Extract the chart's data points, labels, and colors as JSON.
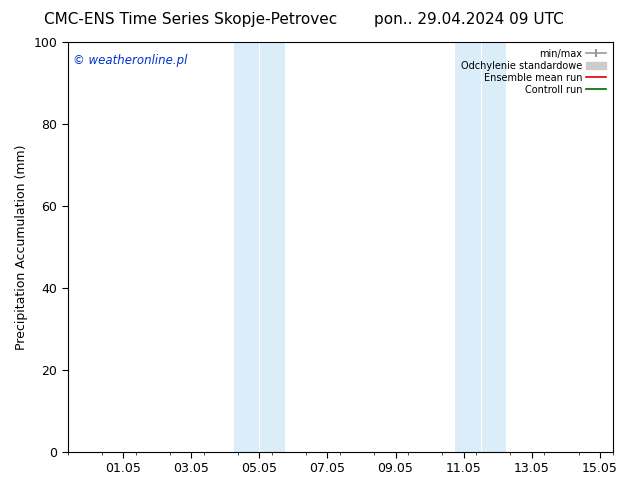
{
  "title_left": "CMC-ENS Time Series Skopje-Petrovec",
  "title_right": "pon.. 29.04.2024 09 UTC",
  "ylabel": "Precipitation Accumulation (mm)",
  "ylim": [
    0,
    100
  ],
  "yticks": [
    0,
    20,
    40,
    60,
    80,
    100
  ],
  "xtick_labels": [
    "01.05",
    "03.05",
    "05.05",
    "07.05",
    "09.05",
    "11.05",
    "13.05",
    "15.05"
  ],
  "xtick_positions": [
    2.0,
    4.0,
    6.0,
    8.0,
    10.0,
    12.0,
    14.0,
    16.0
  ],
  "xlim": [
    0.375,
    16.375
  ],
  "shaded_regions": [
    {
      "x_start": 5.25,
      "x_end": 6.0,
      "color": "#daedf8"
    },
    {
      "x_start": 6.0,
      "x_end": 6.75,
      "color": "#daedf8"
    },
    {
      "x_start": 11.75,
      "x_end": 12.5,
      "color": "#daedf8"
    },
    {
      "x_start": 12.5,
      "x_end": 13.25,
      "color": "#daedf8"
    }
  ],
  "shaded_bands": [
    {
      "x_start": 5.25,
      "x_end": 6.75,
      "color": "#daedf8"
    },
    {
      "x_start": 11.75,
      "x_end": 13.25,
      "color": "#daedf8"
    }
  ],
  "watermark_text": "© weatheronline.pl",
  "watermark_color": "#0033cc",
  "legend_labels": [
    "min/max",
    "Odchylenie standardowe",
    "Ensemble mean run",
    "Controll run"
  ],
  "min_max_color": "#999999",
  "std_color": "#cccccc",
  "mean_color": "#dd0000",
  "control_color": "#006600",
  "background_color": "#ffffff",
  "title_fontsize": 11,
  "axis_label_fontsize": 9,
  "tick_fontsize": 9,
  "watermark_fontsize": 8.5
}
